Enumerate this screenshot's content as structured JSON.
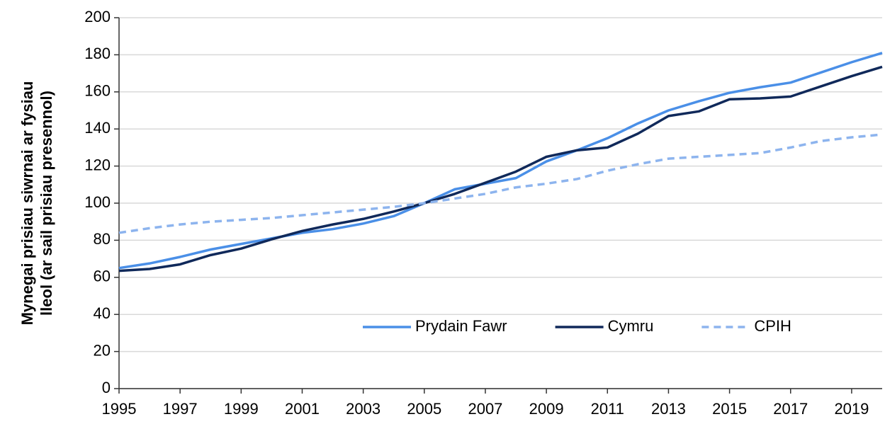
{
  "chart_data": {
    "type": "line",
    "ylabel": [
      "Mynegai prisiau siwrnai ar fysiau",
      "lleol (ar sail prisiau presennol)"
    ],
    "x": [
      1995,
      1996,
      1997,
      1998,
      1999,
      2000,
      2001,
      2002,
      2003,
      2004,
      2005,
      2006,
      2007,
      2008,
      2009,
      2010,
      2011,
      2012,
      2013,
      2014,
      2015,
      2016,
      2017,
      2018,
      2019,
      2020
    ],
    "series": [
      {
        "name": "Prydain Fawr",
        "color": "#4a8fe7",
        "dash": false,
        "values": [
          65,
          67.5,
          71,
          75,
          78,
          81,
          84,
          86,
          89,
          93,
          100,
          107.5,
          110.5,
          113.5,
          122.5,
          128.5,
          135,
          143,
          150,
          155,
          159.5,
          162.5,
          165,
          170.5,
          176,
          181
        ]
      },
      {
        "name": "Cymru",
        "color": "#10295a",
        "dash": false,
        "values": [
          63.5,
          64.5,
          67,
          72,
          75.5,
          80.5,
          85,
          88.5,
          91.5,
          95.5,
          100,
          105,
          111,
          117,
          125,
          128.5,
          130,
          137.5,
          147,
          149.5,
          156,
          156.5,
          157.5,
          163,
          168.5,
          173.5
        ]
      },
      {
        "name": "CPIH",
        "color": "#8db4ee",
        "dash": true,
        "values": [
          84,
          86.5,
          88.5,
          90,
          91,
          92,
          93.5,
          95,
          96.5,
          98,
          100,
          102.5,
          105,
          108.5,
          110.5,
          113,
          117.5,
          121,
          124,
          125,
          126,
          127,
          130,
          133.5,
          135.5,
          137
        ]
      }
    ],
    "xlim": [
      1995,
      2020
    ],
    "xticks": [
      1995,
      1997,
      1999,
      2001,
      2003,
      2005,
      2007,
      2009,
      2011,
      2013,
      2015,
      2017,
      2019
    ],
    "ylim": [
      0,
      200
    ],
    "yticks": [
      0,
      20,
      40,
      60,
      80,
      100,
      120,
      140,
      160,
      180,
      200
    ],
    "grid": true,
    "legend": "lower right"
  }
}
